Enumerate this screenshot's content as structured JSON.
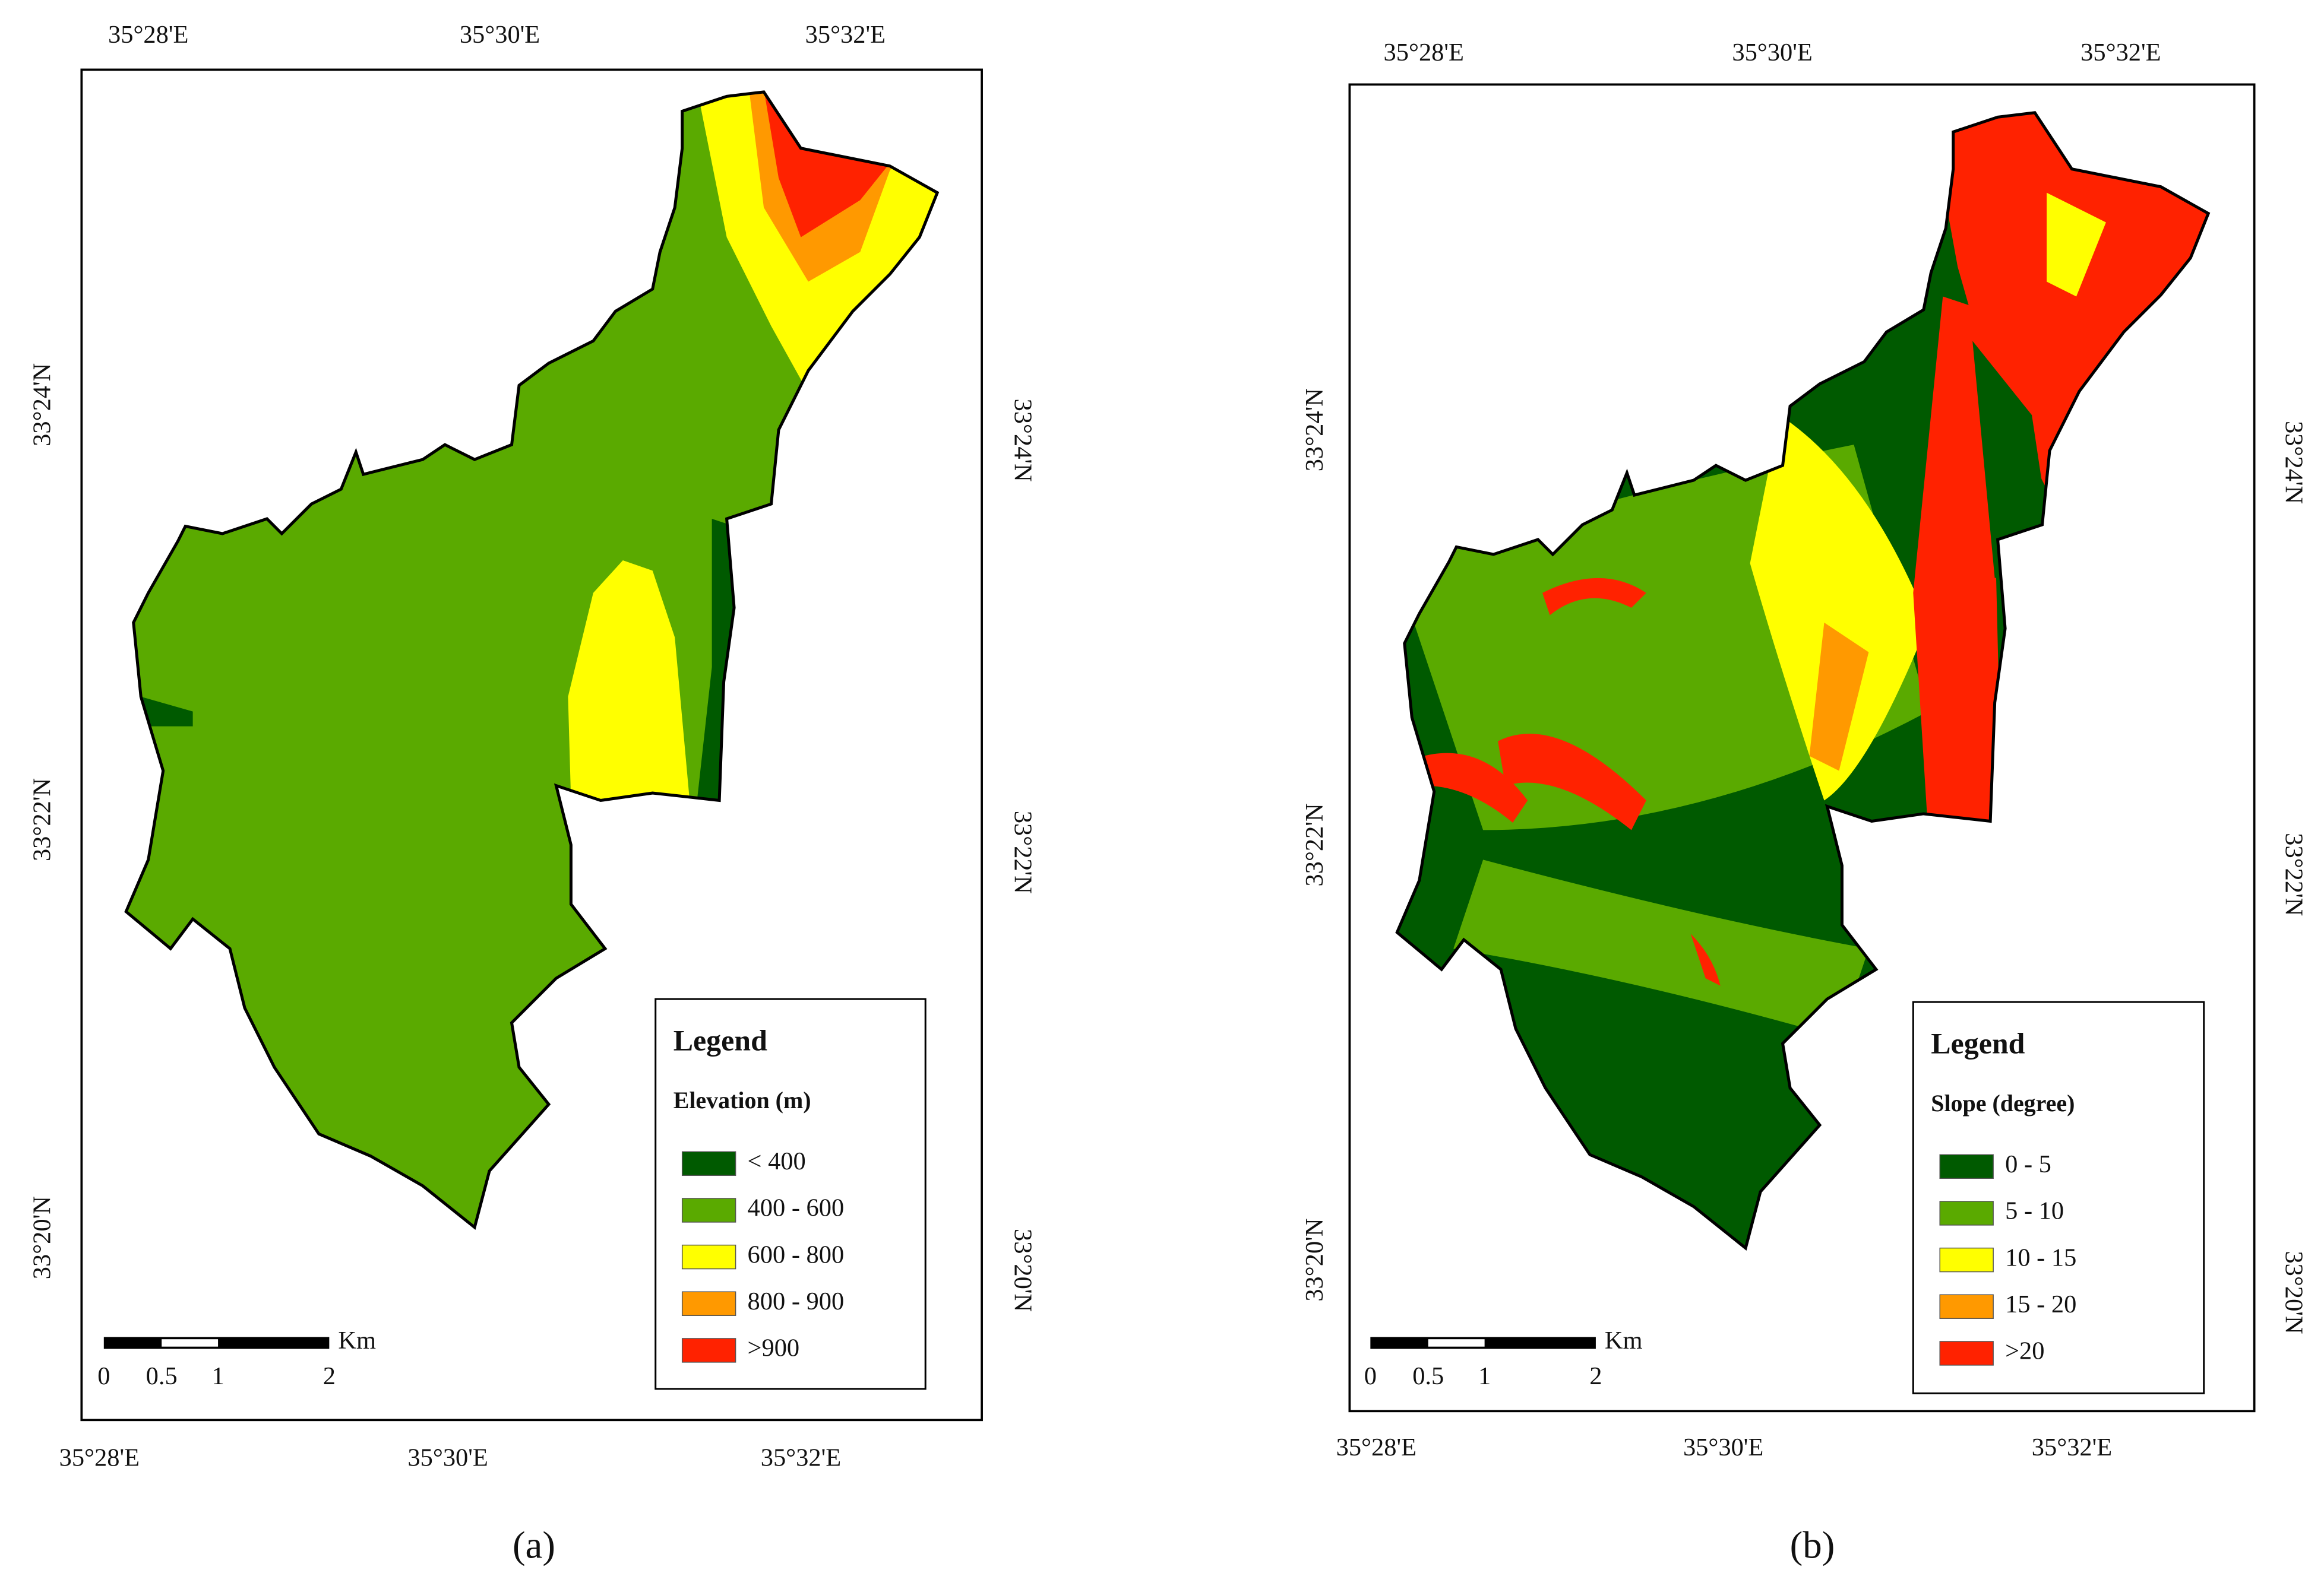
{
  "panels": [
    {
      "label": "(a)",
      "top_labels": [
        "35°28'E",
        "35°30'E",
        "35°32'E"
      ],
      "bottom_labels": [
        "35°28'E",
        "35°30'E",
        "35°32'E"
      ],
      "left_labels": [
        "33°24'N",
        "33°22'N",
        "33°20'N"
      ],
      "right_labels": [
        "33°24'N",
        "33°22'N",
        "33°20'N"
      ],
      "legend": {
        "title": "Legend",
        "subtitle": "Elevation (m)",
        "items": [
          {
            "label": "< 400",
            "color": "#005a00"
          },
          {
            "label": "400 - 600",
            "color": "#5aaa00"
          },
          {
            "label": "600 - 800",
            "color": "#ffff00"
          },
          {
            "label": "800 - 900",
            "color": "#ff9900"
          },
          {
            "label": ">900",
            "color": "#ff2200"
          }
        ]
      },
      "scale": {
        "unit": "Km",
        "ticks": [
          "0",
          "0.5",
          "1",
          "2"
        ]
      }
    },
    {
      "label": "(b)",
      "top_labels": [
        "35°28'E",
        "35°30'E",
        "35°32'E"
      ],
      "bottom_labels": [
        "35°28'E",
        "35°30'E",
        "35°32'E"
      ],
      "left_labels": [
        "33°24'N",
        "33°22'N",
        "33°20'N"
      ],
      "right_labels": [
        "33°24'N",
        "33°22'N",
        "33°20'N"
      ],
      "legend": {
        "title": "Legend",
        "subtitle": "Slope (degree)",
        "items": [
          {
            "label": "0 - 5",
            "color": "#005a00"
          },
          {
            "label": "5 - 10",
            "color": "#5aaa00"
          },
          {
            "label": "10 - 15",
            "color": "#ffff00"
          },
          {
            "label": "15 - 20",
            "color": "#ff9900"
          },
          {
            "label": ">20",
            "color": "#ff2200"
          }
        ]
      },
      "scale": {
        "unit": "Km",
        "ticks": [
          "0",
          "0.5",
          "1",
          "2"
        ]
      }
    }
  ]
}
